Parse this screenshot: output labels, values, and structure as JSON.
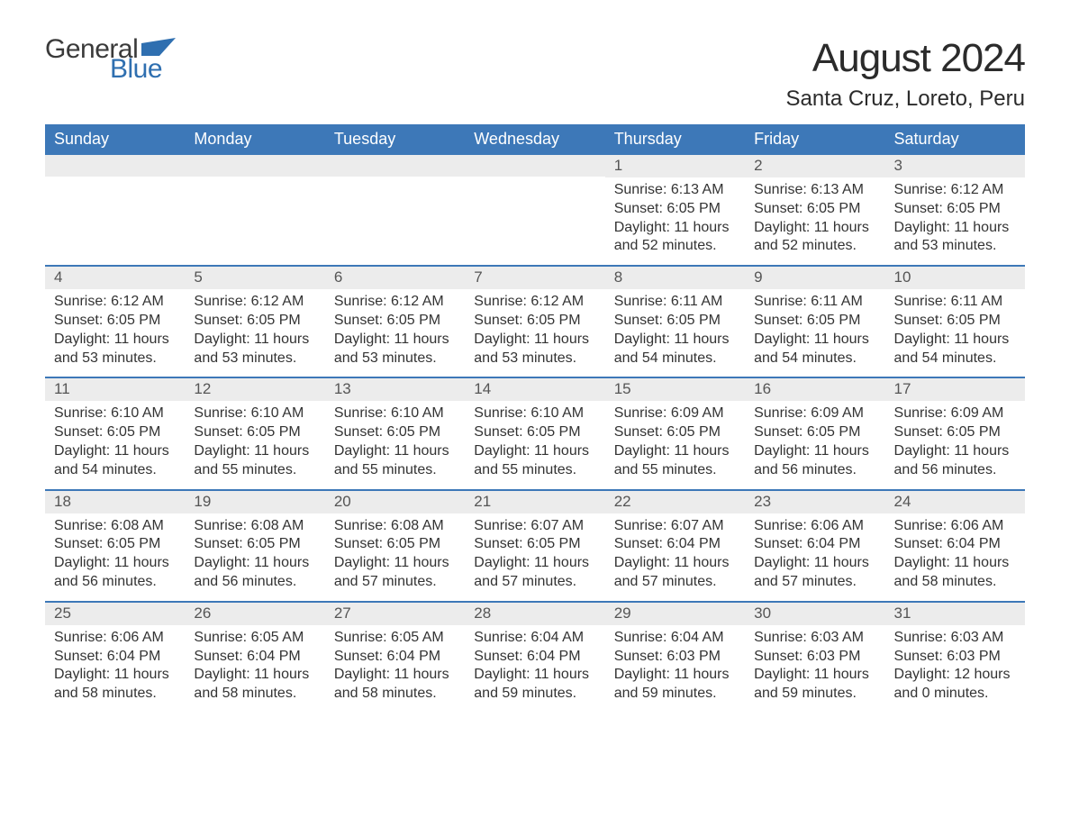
{
  "brand": {
    "part1": "General",
    "part2": "Blue",
    "flag_color": "#2f6fb0"
  },
  "title": "August 2024",
  "location": "Santa Cruz, Loreto, Peru",
  "colors": {
    "header_bg": "#3d78b8",
    "header_text": "#ffffff",
    "daynum_bg": "#ececec",
    "week_border": "#3d78b8",
    "body_text": "#333333",
    "title_text": "#2b2b2b"
  },
  "typography": {
    "title_fontsize": 44,
    "location_fontsize": 24,
    "dayhead_fontsize": 18,
    "daynum_fontsize": 17,
    "cell_fontsize": 16
  },
  "day_headers": [
    "Sunday",
    "Monday",
    "Tuesday",
    "Wednesday",
    "Thursday",
    "Friday",
    "Saturday"
  ],
  "weeks": [
    [
      {
        "n": "",
        "sunrise": "",
        "sunset": "",
        "daylight": ""
      },
      {
        "n": "",
        "sunrise": "",
        "sunset": "",
        "daylight": ""
      },
      {
        "n": "",
        "sunrise": "",
        "sunset": "",
        "daylight": ""
      },
      {
        "n": "",
        "sunrise": "",
        "sunset": "",
        "daylight": ""
      },
      {
        "n": "1",
        "sunrise": "Sunrise: 6:13 AM",
        "sunset": "Sunset: 6:05 PM",
        "daylight": "Daylight: 11 hours and 52 minutes."
      },
      {
        "n": "2",
        "sunrise": "Sunrise: 6:13 AM",
        "sunset": "Sunset: 6:05 PM",
        "daylight": "Daylight: 11 hours and 52 minutes."
      },
      {
        "n": "3",
        "sunrise": "Sunrise: 6:12 AM",
        "sunset": "Sunset: 6:05 PM",
        "daylight": "Daylight: 11 hours and 53 minutes."
      }
    ],
    [
      {
        "n": "4",
        "sunrise": "Sunrise: 6:12 AM",
        "sunset": "Sunset: 6:05 PM",
        "daylight": "Daylight: 11 hours and 53 minutes."
      },
      {
        "n": "5",
        "sunrise": "Sunrise: 6:12 AM",
        "sunset": "Sunset: 6:05 PM",
        "daylight": "Daylight: 11 hours and 53 minutes."
      },
      {
        "n": "6",
        "sunrise": "Sunrise: 6:12 AM",
        "sunset": "Sunset: 6:05 PM",
        "daylight": "Daylight: 11 hours and 53 minutes."
      },
      {
        "n": "7",
        "sunrise": "Sunrise: 6:12 AM",
        "sunset": "Sunset: 6:05 PM",
        "daylight": "Daylight: 11 hours and 53 minutes."
      },
      {
        "n": "8",
        "sunrise": "Sunrise: 6:11 AM",
        "sunset": "Sunset: 6:05 PM",
        "daylight": "Daylight: 11 hours and 54 minutes."
      },
      {
        "n": "9",
        "sunrise": "Sunrise: 6:11 AM",
        "sunset": "Sunset: 6:05 PM",
        "daylight": "Daylight: 11 hours and 54 minutes."
      },
      {
        "n": "10",
        "sunrise": "Sunrise: 6:11 AM",
        "sunset": "Sunset: 6:05 PM",
        "daylight": "Daylight: 11 hours and 54 minutes."
      }
    ],
    [
      {
        "n": "11",
        "sunrise": "Sunrise: 6:10 AM",
        "sunset": "Sunset: 6:05 PM",
        "daylight": "Daylight: 11 hours and 54 minutes."
      },
      {
        "n": "12",
        "sunrise": "Sunrise: 6:10 AM",
        "sunset": "Sunset: 6:05 PM",
        "daylight": "Daylight: 11 hours and 55 minutes."
      },
      {
        "n": "13",
        "sunrise": "Sunrise: 6:10 AM",
        "sunset": "Sunset: 6:05 PM",
        "daylight": "Daylight: 11 hours and 55 minutes."
      },
      {
        "n": "14",
        "sunrise": "Sunrise: 6:10 AM",
        "sunset": "Sunset: 6:05 PM",
        "daylight": "Daylight: 11 hours and 55 minutes."
      },
      {
        "n": "15",
        "sunrise": "Sunrise: 6:09 AM",
        "sunset": "Sunset: 6:05 PM",
        "daylight": "Daylight: 11 hours and 55 minutes."
      },
      {
        "n": "16",
        "sunrise": "Sunrise: 6:09 AM",
        "sunset": "Sunset: 6:05 PM",
        "daylight": "Daylight: 11 hours and 56 minutes."
      },
      {
        "n": "17",
        "sunrise": "Sunrise: 6:09 AM",
        "sunset": "Sunset: 6:05 PM",
        "daylight": "Daylight: 11 hours and 56 minutes."
      }
    ],
    [
      {
        "n": "18",
        "sunrise": "Sunrise: 6:08 AM",
        "sunset": "Sunset: 6:05 PM",
        "daylight": "Daylight: 11 hours and 56 minutes."
      },
      {
        "n": "19",
        "sunrise": "Sunrise: 6:08 AM",
        "sunset": "Sunset: 6:05 PM",
        "daylight": "Daylight: 11 hours and 56 minutes."
      },
      {
        "n": "20",
        "sunrise": "Sunrise: 6:08 AM",
        "sunset": "Sunset: 6:05 PM",
        "daylight": "Daylight: 11 hours and 57 minutes."
      },
      {
        "n": "21",
        "sunrise": "Sunrise: 6:07 AM",
        "sunset": "Sunset: 6:05 PM",
        "daylight": "Daylight: 11 hours and 57 minutes."
      },
      {
        "n": "22",
        "sunrise": "Sunrise: 6:07 AM",
        "sunset": "Sunset: 6:04 PM",
        "daylight": "Daylight: 11 hours and 57 minutes."
      },
      {
        "n": "23",
        "sunrise": "Sunrise: 6:06 AM",
        "sunset": "Sunset: 6:04 PM",
        "daylight": "Daylight: 11 hours and 57 minutes."
      },
      {
        "n": "24",
        "sunrise": "Sunrise: 6:06 AM",
        "sunset": "Sunset: 6:04 PM",
        "daylight": "Daylight: 11 hours and 58 minutes."
      }
    ],
    [
      {
        "n": "25",
        "sunrise": "Sunrise: 6:06 AM",
        "sunset": "Sunset: 6:04 PM",
        "daylight": "Daylight: 11 hours and 58 minutes."
      },
      {
        "n": "26",
        "sunrise": "Sunrise: 6:05 AM",
        "sunset": "Sunset: 6:04 PM",
        "daylight": "Daylight: 11 hours and 58 minutes."
      },
      {
        "n": "27",
        "sunrise": "Sunrise: 6:05 AM",
        "sunset": "Sunset: 6:04 PM",
        "daylight": "Daylight: 11 hours and 58 minutes."
      },
      {
        "n": "28",
        "sunrise": "Sunrise: 6:04 AM",
        "sunset": "Sunset: 6:04 PM",
        "daylight": "Daylight: 11 hours and 59 minutes."
      },
      {
        "n": "29",
        "sunrise": "Sunrise: 6:04 AM",
        "sunset": "Sunset: 6:03 PM",
        "daylight": "Daylight: 11 hours and 59 minutes."
      },
      {
        "n": "30",
        "sunrise": "Sunrise: 6:03 AM",
        "sunset": "Sunset: 6:03 PM",
        "daylight": "Daylight: 11 hours and 59 minutes."
      },
      {
        "n": "31",
        "sunrise": "Sunrise: 6:03 AM",
        "sunset": "Sunset: 6:03 PM",
        "daylight": "Daylight: 12 hours and 0 minutes."
      }
    ]
  ]
}
